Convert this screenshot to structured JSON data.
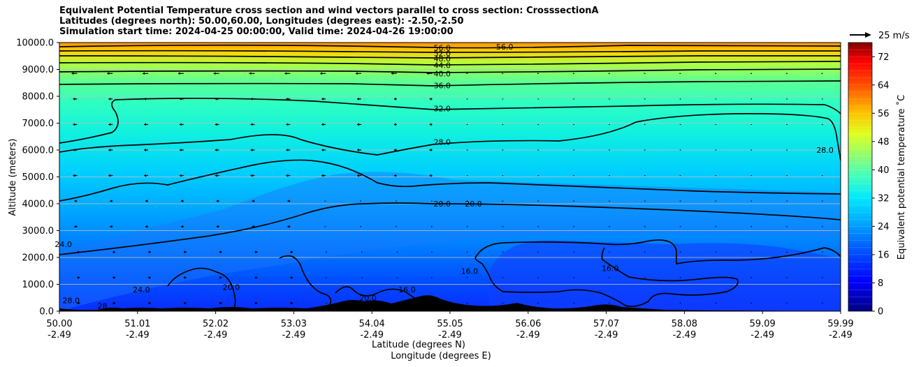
{
  "titles": [
    "Equivalent Potential Temperature cross section and wind vectors parallel to cross section: CrosssectionA",
    "Latitudes (degrees north): 50.00,60.00, Longitudes (degrees east): -2.50,-2.50",
    "Simulation start time: 2024-04-25 00:00:00, Valid time: 2024-04-26 19:00:00"
  ],
  "chart_data": {
    "type": "contour",
    "ylabel": "Altitude (meters)",
    "xlabel_lat": "Latitude (degrees N)",
    "xlabel_lon": "Longitude (degrees E)",
    "ylim": [
      0,
      10000
    ],
    "y_ticks": [
      "0.0",
      "1000.0",
      "2000.0",
      "3000.0",
      "4000.0",
      "5000.0",
      "6000.0",
      "7000.0",
      "8000.0",
      "9000.0",
      "10000.0"
    ],
    "x_ticks": [
      {
        "lat": "50.00",
        "lon": "-2.49"
      },
      {
        "lat": "51.01",
        "lon": "-2.49"
      },
      {
        "lat": "52.02",
        "lon": "-2.49"
      },
      {
        "lat": "53.03",
        "lon": "-2.49"
      },
      {
        "lat": "54.04",
        "lon": "-2.49"
      },
      {
        "lat": "55.05",
        "lon": "-2.49"
      },
      {
        "lat": "56.06",
        "lon": "-2.49"
      },
      {
        "lat": "57.07",
        "lon": "-2.49"
      },
      {
        "lat": "58.08",
        "lon": "-2.49"
      },
      {
        "lat": "59.09",
        "lon": "-2.49"
      },
      {
        "lat": "59.99",
        "lon": "-2.49"
      }
    ],
    "colorbar": {
      "label": "Equivalent potential temperature ˚C",
      "range": [
        0,
        76
      ],
      "ticks": [
        "0",
        "8",
        "16",
        "24",
        "32",
        "40",
        "48",
        "56",
        "64",
        "72"
      ]
    },
    "wind_key": "25 m/s",
    "contour_labels": [
      {
        "text": "56.0",
        "x": 0.49,
        "y": 9800
      },
      {
        "text": "52.0",
        "x": 0.49,
        "y": 9600
      },
      {
        "text": "48.0",
        "x": 0.49,
        "y": 9400
      },
      {
        "text": "44.0",
        "x": 0.49,
        "y": 9150
      },
      {
        "text": "40.0",
        "x": 0.49,
        "y": 8850
      },
      {
        "text": "36.0",
        "x": 0.49,
        "y": 8400
      },
      {
        "text": "32.0",
        "x": 0.49,
        "y": 7550
      },
      {
        "text": "28.0",
        "x": 0.49,
        "y": 6300
      },
      {
        "text": "20.0",
        "x": 0.49,
        "y": 4000
      },
      {
        "text": "20.0",
        "x": 0.53,
        "y": 4000
      },
      {
        "text": "56.0",
        "x": 0.57,
        "y": 9850
      },
      {
        "text": "16.0",
        "x": 0.525,
        "y": 1500
      },
      {
        "text": "16.0",
        "x": 0.705,
        "y": 1600
      },
      {
        "text": "28.0",
        "x": 0.98,
        "y": 6000
      },
      {
        "text": "24.0",
        "x": 0.005,
        "y": 2500
      },
      {
        "text": "24.0",
        "x": 0.105,
        "y": 800
      },
      {
        "text": "20.0",
        "x": 0.22,
        "y": 900
      },
      {
        "text": "20.0",
        "x": 0.395,
        "y": 500
      },
      {
        "text": "16.0",
        "x": 0.445,
        "y": 800
      },
      {
        "text": "28.0",
        "x": 0.015,
        "y": 400
      },
      {
        "text": "28",
        "x": 0.055,
        "y": 200
      }
    ]
  }
}
